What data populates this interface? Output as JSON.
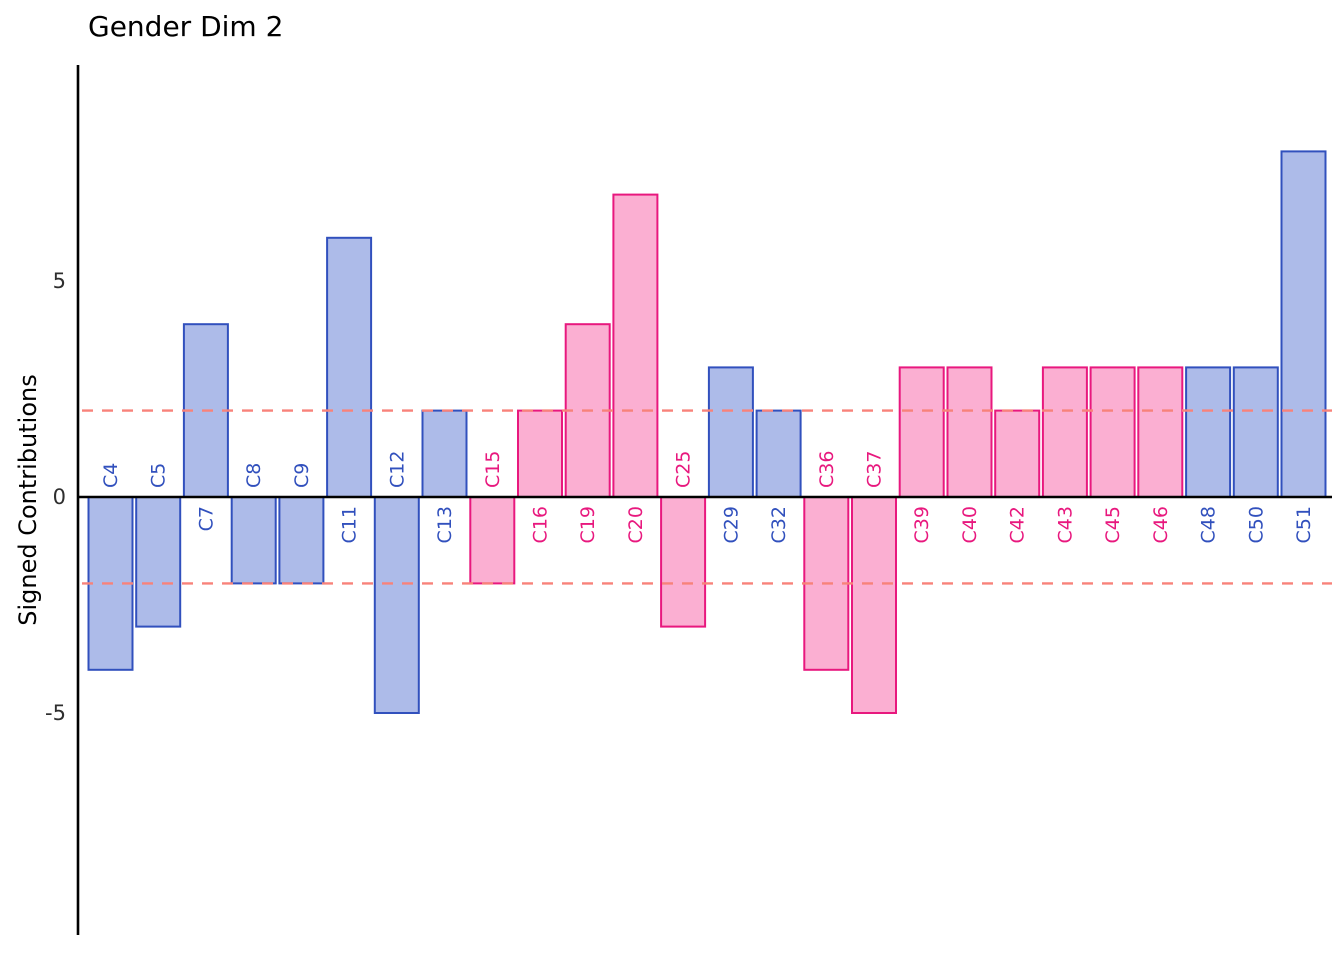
{
  "chart_data": {
    "type": "bar",
    "title": "Gender Dim 2",
    "xlabel": "",
    "ylabel": "Signed Contributions",
    "ylim": [
      -10,
      10
    ],
    "yticks": [
      -5,
      0,
      5
    ],
    "grid": false,
    "legend": "none",
    "threshold_lines": [
      2,
      -2
    ],
    "threshold_color": "#f8827a",
    "axis_color": "#000000",
    "tick_label_color": "#2e2e2e",
    "categories": [
      "C4",
      "C5",
      "C7",
      "C8",
      "C9",
      "C11",
      "C12",
      "C13",
      "C15",
      "C16",
      "C19",
      "C20",
      "C25",
      "C29",
      "C32",
      "C36",
      "C37",
      "C39",
      "C40",
      "C42",
      "C43",
      "C45",
      "C46",
      "C48",
      "C50",
      "C51"
    ],
    "values": [
      -4,
      -3,
      4,
      -2,
      -2,
      6,
      -5,
      2,
      -2,
      2,
      4,
      7,
      -3,
      3,
      2,
      -4,
      -5,
      3,
      3,
      2,
      3,
      3,
      3,
      3,
      3,
      8
    ],
    "groups": [
      "blue",
      "blue",
      "blue",
      "blue",
      "blue",
      "blue",
      "blue",
      "blue",
      "pink",
      "pink",
      "pink",
      "pink",
      "pink",
      "blue",
      "blue",
      "pink",
      "pink",
      "pink",
      "pink",
      "pink",
      "pink",
      "pink",
      "pink",
      "blue",
      "blue",
      "blue"
    ],
    "colors": {
      "blue": {
        "fill": "#adbbe9",
        "stroke": "#3150bd",
        "label": "#3150bd"
      },
      "pink": {
        "fill": "#fbafd2",
        "stroke": "#e8187e",
        "label": "#e8187e"
      }
    }
  }
}
